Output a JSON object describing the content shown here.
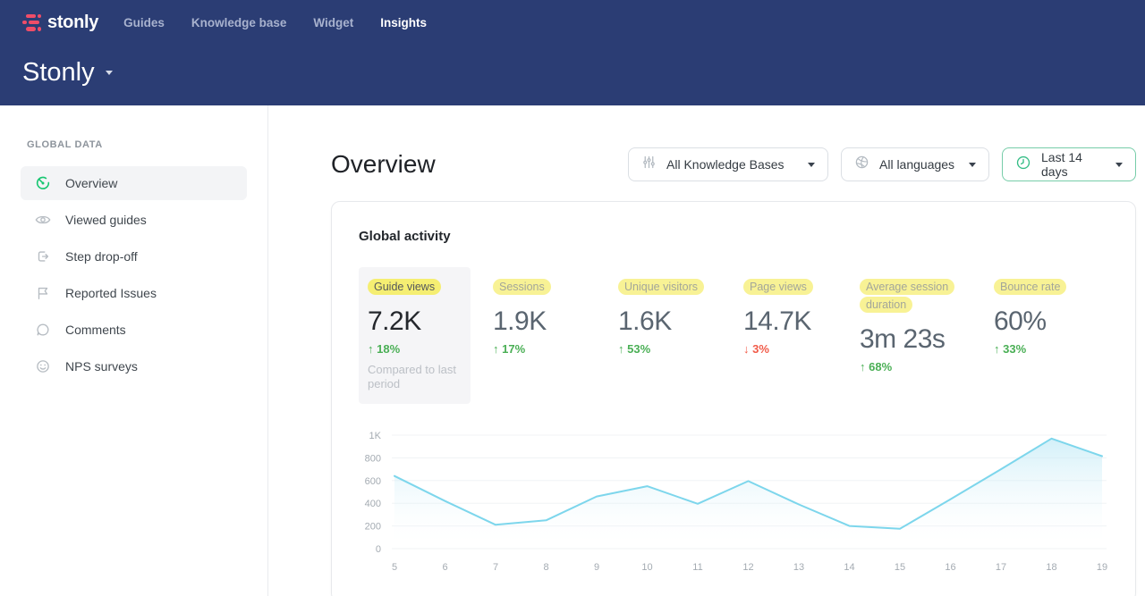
{
  "navbar": {
    "logo_text": "stonly",
    "items": [
      {
        "label": "Guides",
        "active": false
      },
      {
        "label": "Knowledge base",
        "active": false
      },
      {
        "label": "Widget",
        "active": false
      },
      {
        "label": "Insights",
        "active": true
      }
    ],
    "workspace_title": "Stonly"
  },
  "sidebar": {
    "section_label": "GLOBAL DATA",
    "items": [
      {
        "label": "Overview",
        "icon": "gauge-icon",
        "active": true
      },
      {
        "label": "Viewed guides",
        "icon": "eye-icon",
        "active": false
      },
      {
        "label": "Step drop-off",
        "icon": "step-exit-icon",
        "active": false
      },
      {
        "label": "Reported Issues",
        "icon": "flag-icon",
        "active": false
      },
      {
        "label": "Comments",
        "icon": "comment-icon",
        "active": false
      },
      {
        "label": "NPS surveys",
        "icon": "smiley-icon",
        "active": false
      }
    ]
  },
  "main": {
    "page_title": "Overview",
    "filters": [
      {
        "label": "All Knowledge Bases",
        "icon": "sliders-icon",
        "active": false
      },
      {
        "label": "All languages",
        "icon": "globe-icon",
        "active": false
      },
      {
        "label": "Last 14 days",
        "icon": "clock-icon",
        "active": true
      }
    ],
    "card": {
      "title": "Global activity",
      "metrics": [
        {
          "label": "Guide views",
          "value": "7.2K",
          "change": "18%",
          "direction": "up",
          "note": "Compared to last period",
          "selected": true
        },
        {
          "label": "Sessions",
          "value": "1.9K",
          "change": "17%",
          "direction": "up",
          "selected": false
        },
        {
          "label": "Unique visitors",
          "value": "1.6K",
          "change": "53%",
          "direction": "up",
          "selected": false
        },
        {
          "label": "Page views",
          "value": "14.7K",
          "change": "3%",
          "direction": "down",
          "selected": false
        },
        {
          "label": "Average session duration",
          "value": "3m 23s",
          "change": "68%",
          "direction": "up",
          "selected": false
        },
        {
          "label": "Bounce rate",
          "value": "60%",
          "change": "33%",
          "direction": "up",
          "selected": false
        }
      ]
    }
  },
  "chart_data": {
    "type": "area",
    "title": "Global activity",
    "x": [
      5,
      6,
      7,
      8,
      9,
      10,
      11,
      12,
      13,
      14,
      15,
      16,
      17,
      18,
      19
    ],
    "series": [
      {
        "name": "Guide views",
        "values": [
          640,
          420,
          210,
          250,
          460,
          550,
          395,
          595,
          390,
          200,
          175,
          435,
          700,
          970,
          815
        ]
      }
    ],
    "ylim": [
      0,
      1000
    ],
    "yticks": [
      0,
      200,
      400,
      600,
      800,
      1000
    ],
    "ytick_labels": [
      "0",
      "200",
      "400",
      "600",
      "800",
      "1K"
    ],
    "grid": "horizontal",
    "legend": "none",
    "line_color": "#7dd6ec",
    "fill_from": "#aee3f3",
    "fill_to": "#ffffff"
  },
  "colors": {
    "navbar_bg": "#2b3d74",
    "brand_pink": "#ef4d68",
    "accent_green": "#17c671",
    "highlight_yellow": "#f5ee72",
    "positive": "#4aaf55",
    "negative": "#f15b49",
    "chart_line": "#7dd6ec"
  }
}
